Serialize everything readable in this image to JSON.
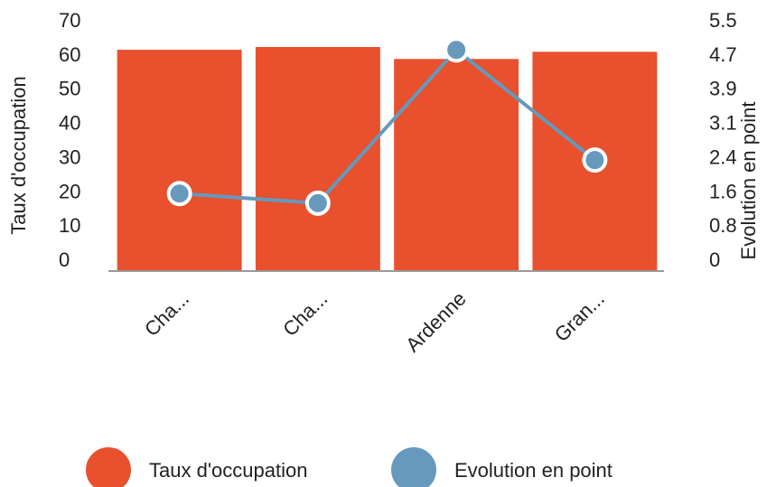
{
  "chart_data": {
    "type": "bar_line",
    "categories": [
      "Cha...",
      "Cha...",
      "Ardenne",
      "Gran..."
    ],
    "series": [
      {
        "name": "Taux d'occupation",
        "color": "#e8502e",
        "type": "bar",
        "values": [
          64.7,
          65.5,
          62,
          64.1
        ]
      },
      {
        "name": "Evolution en point",
        "color": "#6699bb",
        "type": "line",
        "axis": "y2",
        "values": [
          1.78,
          1.56,
          5.08,
          2.55
        ]
      }
    ],
    "ylabel": "Taux d'occupation",
    "y2label": "Evolution en point",
    "ylim": [
      0,
      70
    ],
    "yticks": [
      0,
      10,
      20,
      30,
      40,
      50,
      60,
      70
    ],
    "y2lim": [
      0,
      5.5
    ],
    "y2ticks": [
      0,
      {
        "value": 0.7857,
        "label": "0.8"
      },
      {
        "value": 1.5714,
        "label": "1.6"
      },
      {
        "value": 2.3571,
        "label": "2.4"
      },
      {
        "value": 3.1429,
        "label": "3.1"
      },
      {
        "value": 3.9286,
        "label": "3.9"
      },
      {
        "value": 4.7143,
        "label": "4.7"
      },
      5.5
    ],
    "legend": "bottom"
  }
}
